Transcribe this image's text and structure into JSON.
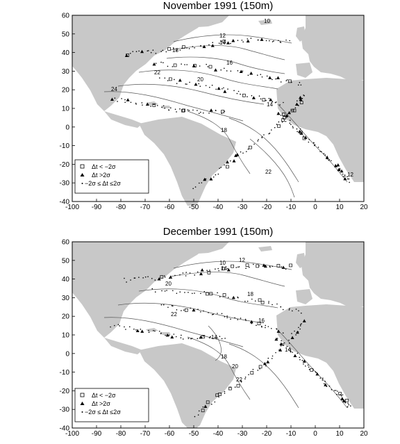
{
  "panels": [
    {
      "title": "November 1991 (150m)",
      "x_ticks": [
        "-100",
        "-90",
        "-80",
        "-70",
        "-60",
        "-50",
        "-40",
        "-30",
        "-20",
        "-10",
        "0",
        "10",
        "20"
      ],
      "y_ticks": [
        "60",
        "50",
        "40",
        "30",
        "20",
        "10",
        "0",
        "-10",
        "-20",
        "-30",
        "-40"
      ],
      "contour_labels": [
        "10",
        "12",
        "14",
        "16",
        "18",
        "20",
        "22",
        "24",
        "14",
        "18",
        "22",
        "12"
      ],
      "legend": {
        "items": [
          {
            "symbol": "square-open",
            "label": "Δt < −2σ"
          },
          {
            "symbol": "triangle-filled",
            "label": "Δt >2σ"
          },
          {
            "symbol": "dot",
            "label": "−2σ ≤ Δt ≤2σ"
          }
        ]
      }
    },
    {
      "title": "December 1991 (150m)",
      "x_ticks": [
        "-100",
        "-90",
        "-80",
        "-70",
        "-60",
        "-50",
        "-40",
        "-30",
        "-20",
        "-10",
        "0",
        "10",
        "20"
      ],
      "y_ticks": [
        "60",
        "50",
        "40",
        "30",
        "20",
        "10",
        "0",
        "-10",
        "-20",
        "-30",
        "-40"
      ],
      "contour_labels": [
        "10",
        "12",
        "14",
        "18",
        "20",
        "22",
        "16",
        "14",
        "18",
        "20",
        "22",
        "14"
      ],
      "legend": {
        "items": [
          {
            "symbol": "square-open",
            "label": "Δt < −2σ"
          },
          {
            "symbol": "triangle-filled",
            "label": "Δt >2σ"
          },
          {
            "symbol": "dot",
            "label": "−2σ ≤ Δt ≤2σ"
          }
        ]
      }
    }
  ],
  "colors": {
    "land": "#c8c8c8",
    "ocean": "#ffffff",
    "frame": "#000000",
    "contour": "#333333"
  }
}
